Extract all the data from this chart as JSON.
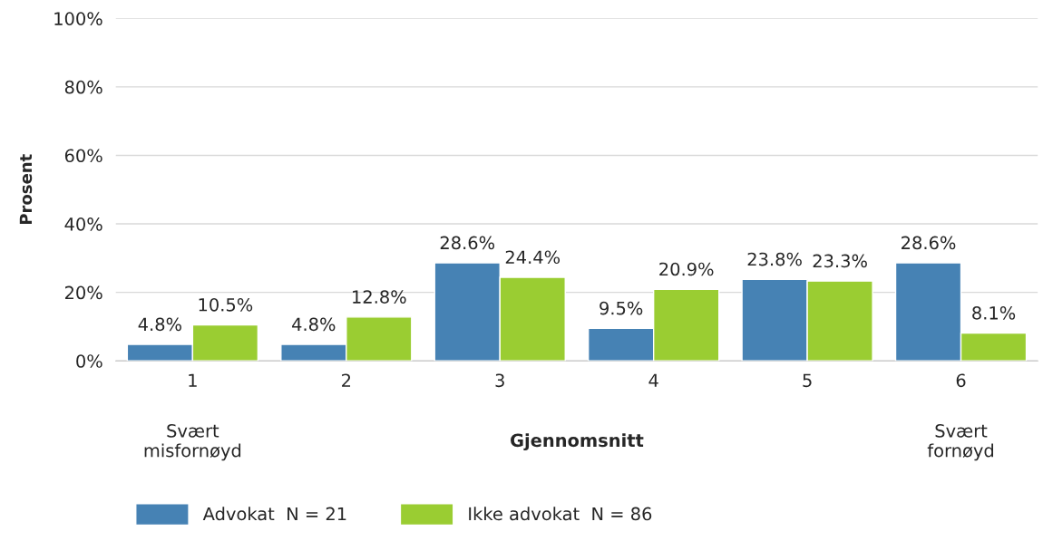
{
  "chart_data": {
    "type": "bar",
    "ylabel": "Prosent",
    "xlabel": "Gjennomsnitt",
    "categories": [
      "1",
      "2",
      "3",
      "4",
      "5",
      "6"
    ],
    "series": [
      {
        "name": "Advokat  N = 21",
        "color": "#4682b4",
        "values": [
          4.8,
          4.8,
          28.6,
          9.5,
          23.8,
          28.6
        ],
        "value_labels": [
          "4.8%",
          "4.8%",
          "28.6%",
          "9.5%",
          "23.8%",
          "28.6%"
        ]
      },
      {
        "name": "Ikke advokat  N = 86",
        "color": "#9acd32",
        "values": [
          10.5,
          12.8,
          24.4,
          20.9,
          23.3,
          8.1
        ],
        "value_labels": [
          "10.5%",
          "12.8%",
          "24.4%",
          "20.9%",
          "23.3%",
          "8.1%"
        ]
      }
    ],
    "ylim": [
      0,
      100
    ],
    "yticks": [
      {
        "value": 0,
        "label": "0%"
      },
      {
        "value": 20,
        "label": "20%"
      },
      {
        "value": 40,
        "label": "40%"
      },
      {
        "value": 60,
        "label": "60%"
      },
      {
        "value": 80,
        "label": "80%"
      },
      {
        "value": 100,
        "label": "100%"
      }
    ],
    "grid": "y",
    "legend": "bottom left",
    "annotations": [
      "Svært\nmisfornøyd",
      "Svært\nfornøyd"
    ]
  }
}
